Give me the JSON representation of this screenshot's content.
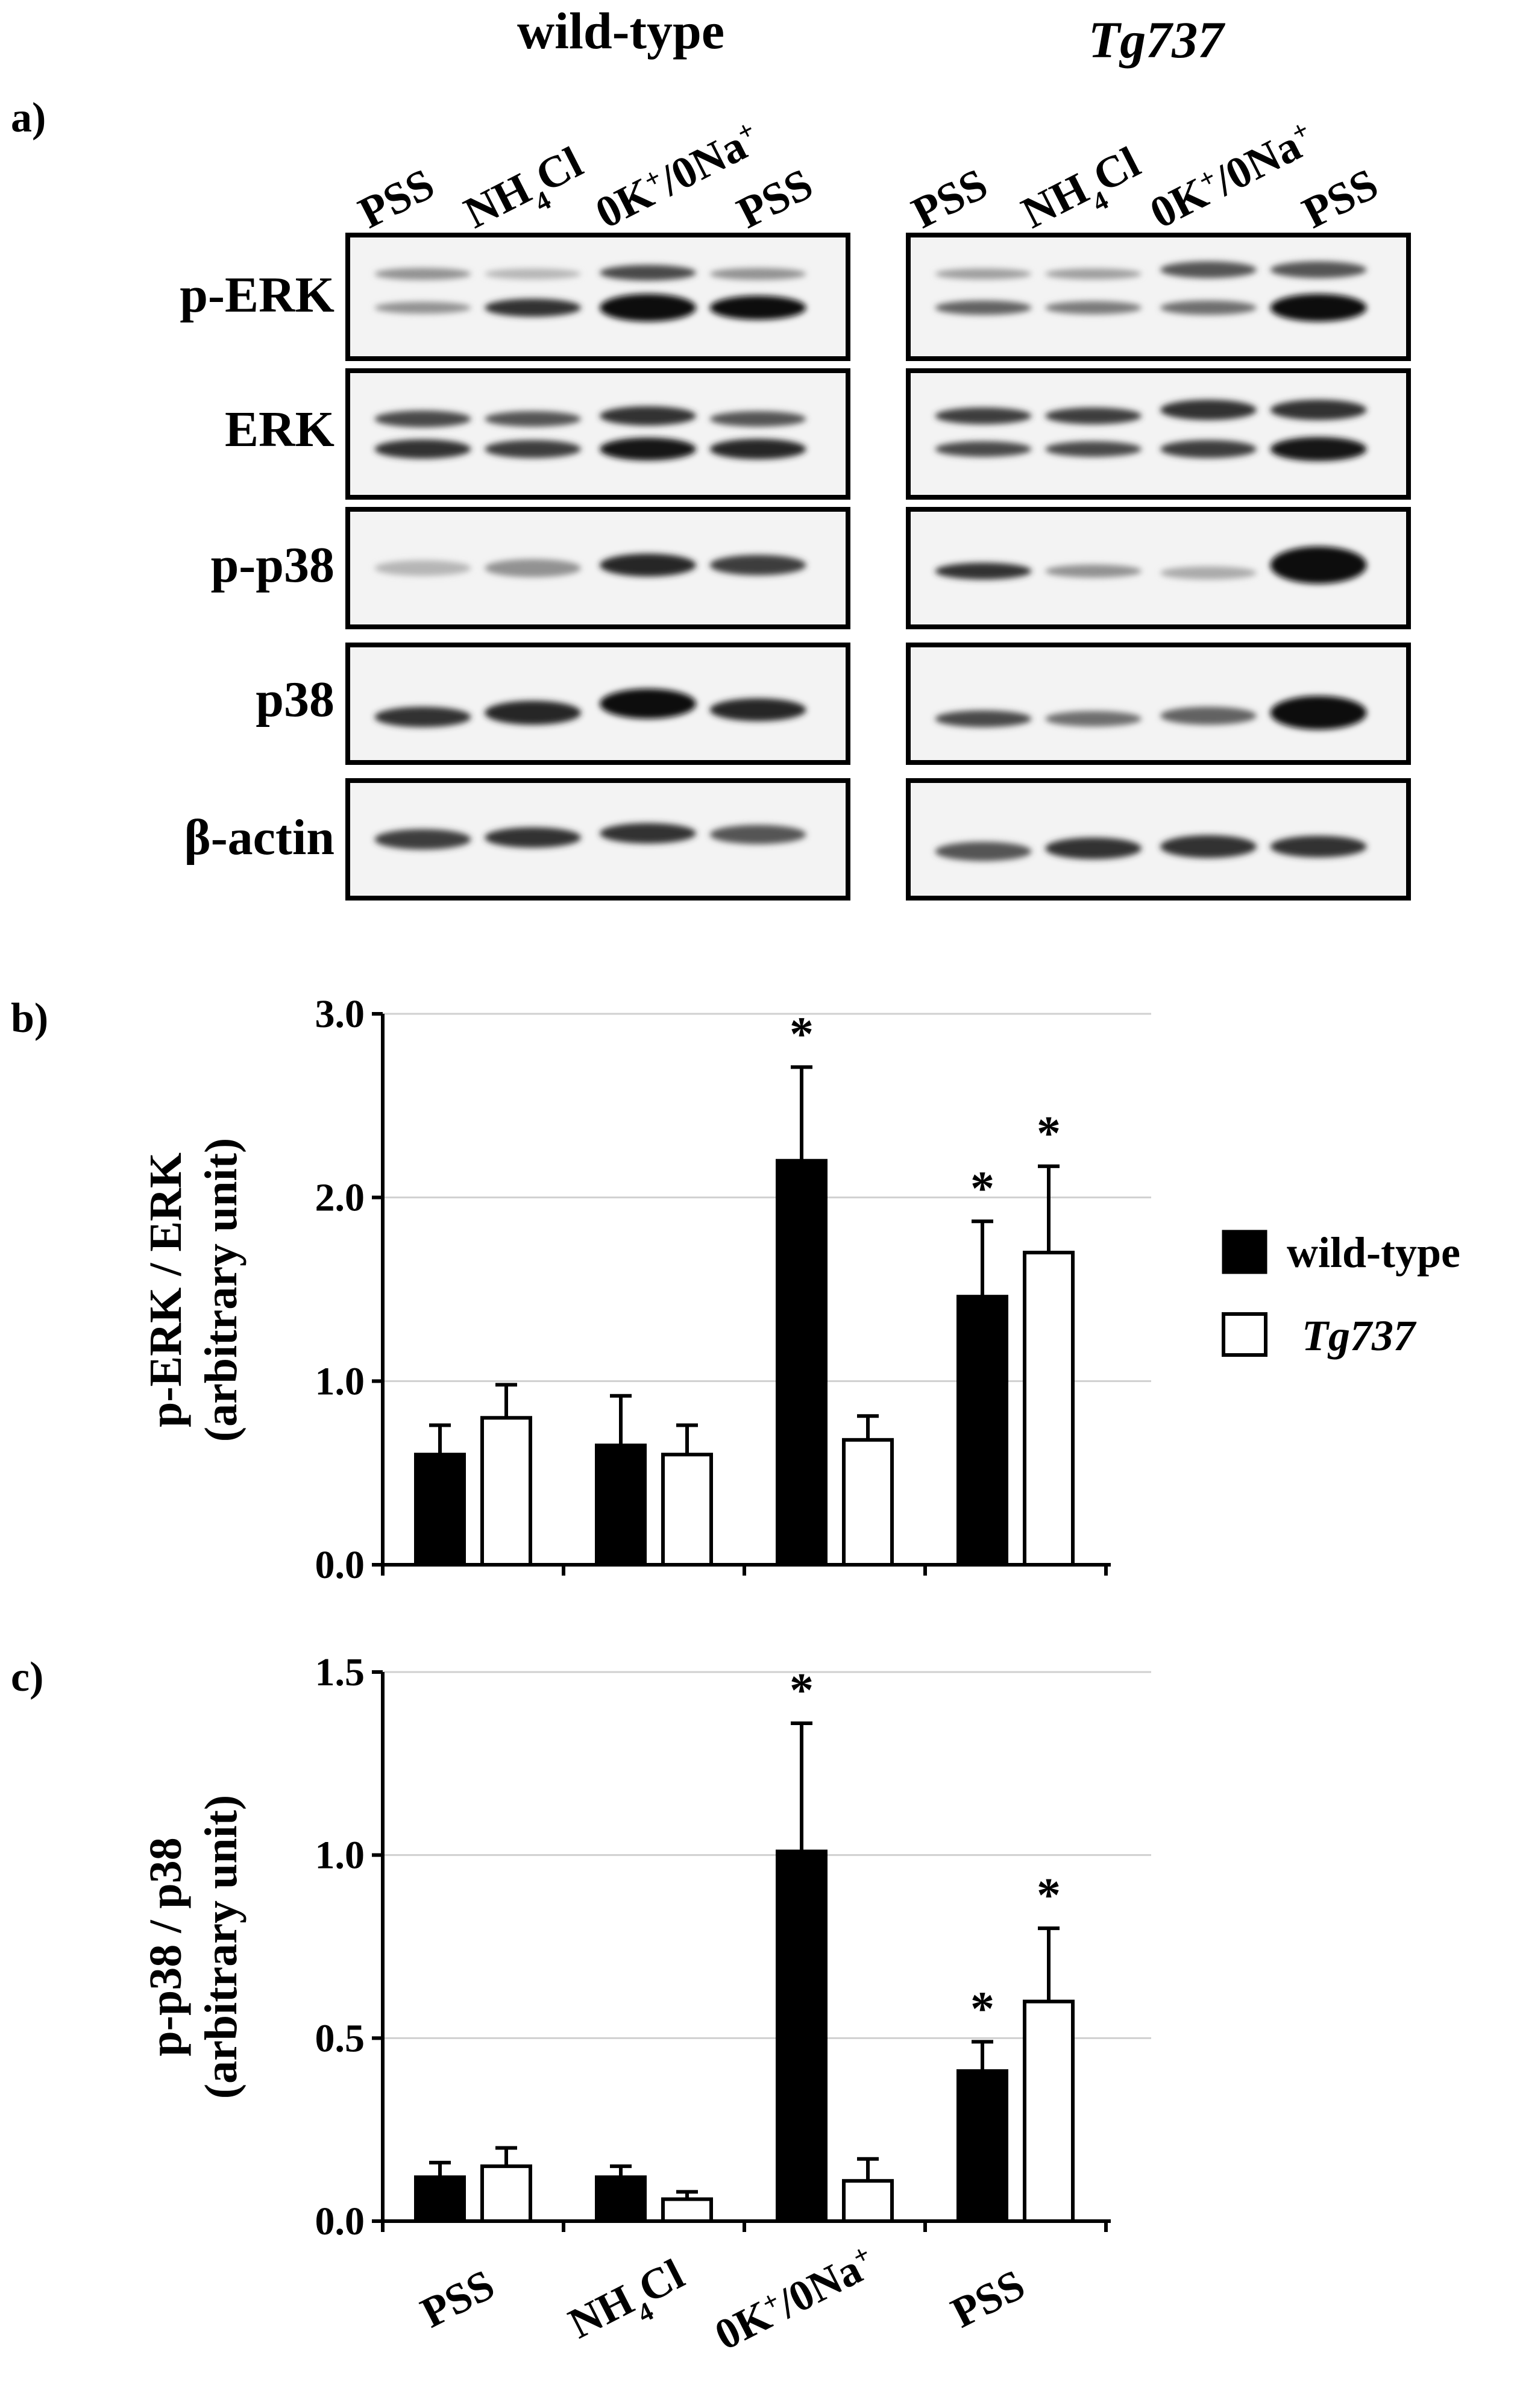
{
  "panel_labels": {
    "a": "a)",
    "b": "b)",
    "c": "c)"
  },
  "groups": {
    "wild_type": "wild-type",
    "tg737": "Tg737"
  },
  "lanes": [
    {
      "main": "PSS",
      "sub": "",
      "tail": "",
      "sup": ""
    },
    {
      "main": "NH",
      "sub": "4",
      "tail": "Cl",
      "sup": ""
    },
    {
      "main": "0K",
      "sup": "+",
      "mid": "/0Na",
      "sup2": "+"
    },
    {
      "main": "PSS",
      "sub": "",
      "tail": "",
      "sup": ""
    }
  ],
  "blot_rows": [
    "p-ERK",
    "ERK",
    "p-p38",
    "p38",
    "β-actin"
  ],
  "legend": {
    "wild_type": "wild-type",
    "tg737": "Tg737",
    "wild_type_color": "#000000",
    "tg737_color": "#ffffff"
  },
  "chart_data": [
    {
      "type": "bar",
      "panel": "b)",
      "ylabel_line1": "p-ERK / ERK",
      "ylabel_line2": "(arbitrary unit)",
      "ylim": [
        0,
        3.0
      ],
      "yticks": [
        "0.0",
        "1.0",
        "2.0",
        "3.0"
      ],
      "grid": true,
      "legend_position": "right",
      "categories": [
        "PSS",
        "NH4Cl",
        "0K+/0Na+",
        "PSS"
      ],
      "series": [
        {
          "name": "wild-type",
          "color": "#000000",
          "values": [
            0.6,
            0.65,
            2.2,
            1.46
          ],
          "errors": [
            0.16,
            0.27,
            0.51,
            0.41
          ],
          "significant": [
            false,
            false,
            true,
            true
          ]
        },
        {
          "name": "Tg737",
          "color": "#ffffff",
          "values": [
            0.8,
            0.6,
            0.68,
            1.7
          ],
          "errors": [
            0.18,
            0.16,
            0.13,
            0.47
          ],
          "significant": [
            false,
            false,
            false,
            true
          ]
        }
      ],
      "marker": "*"
    },
    {
      "type": "bar",
      "panel": "c)",
      "ylabel_line1": "p-p38 / p38",
      "ylabel_line2": "(arbitrary unit)",
      "ylim": [
        0,
        1.5
      ],
      "yticks": [
        "0.0",
        "0.5",
        "1.0",
        "1.5"
      ],
      "grid": true,
      "categories": [
        "PSS",
        "NH4Cl",
        "0K+/0Na+",
        "PSS"
      ],
      "series": [
        {
          "name": "wild-type",
          "color": "#000000",
          "values": [
            0.12,
            0.12,
            1.01,
            0.41
          ],
          "errors": [
            0.04,
            0.03,
            0.35,
            0.08
          ],
          "significant": [
            false,
            false,
            true,
            true
          ]
        },
        {
          "name": "Tg737",
          "color": "#ffffff",
          "values": [
            0.15,
            0.06,
            0.11,
            0.6
          ],
          "errors": [
            0.05,
            0.02,
            0.06,
            0.2
          ],
          "significant": [
            false,
            false,
            false,
            true
          ]
        }
      ],
      "marker": "*"
    }
  ]
}
